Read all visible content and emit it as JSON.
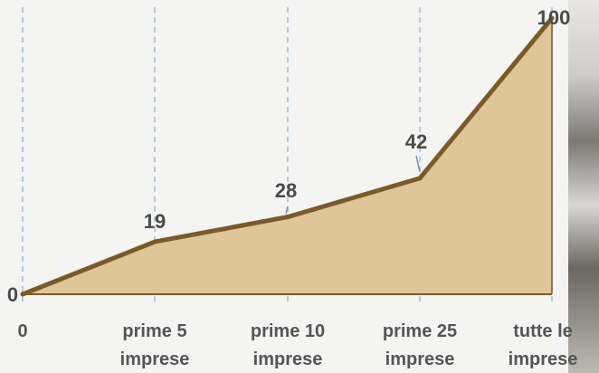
{
  "chart_data": {
    "type": "area",
    "categories": [
      [
        "0"
      ],
      [
        "prime 5",
        "imprese"
      ],
      [
        "prime 10",
        "imprese"
      ],
      [
        "prime 25",
        "imprese"
      ],
      [
        "tutte le",
        "imprese"
      ]
    ],
    "values": [
      0,
      19,
      28,
      42,
      100
    ],
    "data_labels": [
      "0",
      "19",
      "28",
      "42",
      "100"
    ],
    "ylim": [
      0,
      100
    ],
    "grid": "vertical dashed",
    "legend": "none",
    "colors": {
      "fill": "#dcc394",
      "line": "#7a5a2a",
      "grid": "#9ab8d4"
    }
  }
}
